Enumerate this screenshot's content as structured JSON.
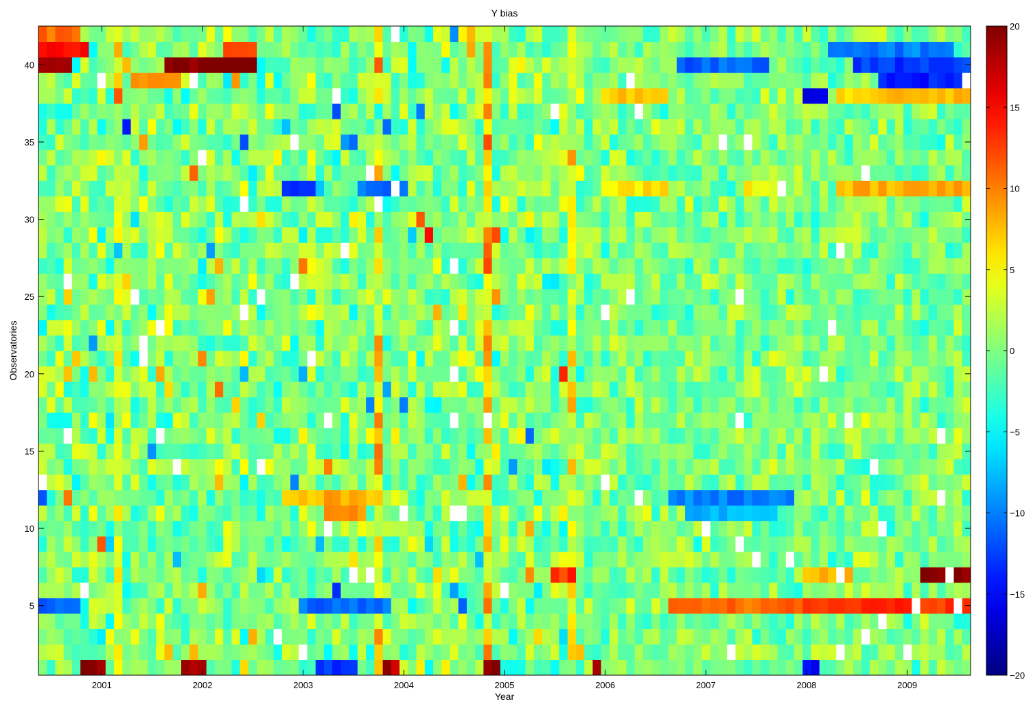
{
  "chart_data": {
    "type": "heatmap",
    "title": "Y bias",
    "xlabel": "Year",
    "ylabel": "Observatories",
    "x_ticks": [
      "2001",
      "2002",
      "2003",
      "2004",
      "2005",
      "2006",
      "2007",
      "2008",
      "2009"
    ],
    "x_tick_values": [
      2001,
      2002,
      2003,
      2004,
      2005,
      2006,
      2007,
      2008,
      2009
    ],
    "xlim": [
      2000.37,
      2009.63
    ],
    "y_ticks": [
      "5",
      "10",
      "15",
      "20",
      "25",
      "30",
      "35",
      "40"
    ],
    "y_tick_values": [
      5,
      10,
      15,
      20,
      25,
      30,
      35,
      40
    ],
    "ylim": [
      0.5,
      42.5
    ],
    "n_rows": 42,
    "n_cols": 111,
    "colorbar": {
      "min": -20,
      "max": 20,
      "ticks": [
        "20",
        "15",
        "10",
        "5",
        "0",
        "−5",
        "−10",
        "−15",
        "−20"
      ],
      "tick_values": [
        20,
        15,
        10,
        5,
        0,
        -5,
        -10,
        -15,
        -20
      ],
      "colormap": "jet"
    },
    "missing_color": "#ffffff",
    "features": [
      {
        "row": 40,
        "from": 2001.65,
        "to": 2002.55,
        "value": 20
      },
      {
        "row": 40,
        "from": 2000.37,
        "to": 2000.7,
        "value": 18
      },
      {
        "row": 41,
        "from": 2000.37,
        "to": 2000.9,
        "value": 14
      },
      {
        "row": 41,
        "from": 2002.2,
        "to": 2002.55,
        "value": 13
      },
      {
        "row": 42,
        "from": 2000.37,
        "to": 2000.75,
        "value": 11
      },
      {
        "row": 39,
        "from": 2001.3,
        "to": 2001.8,
        "value": 10
      },
      {
        "row": 40,
        "from": 2008.5,
        "to": 2009.63,
        "value": -13
      },
      {
        "row": 39,
        "from": 2008.7,
        "to": 2009.63,
        "value": -14
      },
      {
        "row": 41,
        "from": 2008.2,
        "to": 2009.5,
        "value": -10
      },
      {
        "row": 40,
        "from": 2006.7,
        "to": 2007.6,
        "value": -11
      },
      {
        "row": 38,
        "from": 2009.0,
        "to": 2009.63,
        "value": 8
      },
      {
        "row": 38,
        "from": 2006.0,
        "to": 2006.6,
        "value": 7
      },
      {
        "row": 38,
        "from": 2008.3,
        "to": 2009.0,
        "value": 7
      },
      {
        "row": 38,
        "from": 2007.95,
        "to": 2008.2,
        "value": -17
      },
      {
        "row": 32,
        "from": 2008.3,
        "to": 2009.63,
        "value": 8
      },
      {
        "row": 32,
        "from": 2006.0,
        "to": 2006.6,
        "value": 6
      },
      {
        "row": 32,
        "from": 2007.35,
        "to": 2007.7,
        "value": 5
      },
      {
        "row": 32,
        "from": 2002.75,
        "to": 2003.1,
        "value": -13
      },
      {
        "row": 32,
        "from": 2003.5,
        "to": 2004.0,
        "value": -11
      },
      {
        "row": 12,
        "from": 2006.65,
        "to": 2007.85,
        "value": -10
      },
      {
        "row": 11,
        "from": 2006.8,
        "to": 2007.7,
        "value": -8
      },
      {
        "row": 12,
        "from": 2002.8,
        "to": 2003.8,
        "value": 8
      },
      {
        "row": 11,
        "from": 2003.2,
        "to": 2003.6,
        "value": 9
      },
      {
        "row": 5,
        "from": 2006.6,
        "to": 2009.63,
        "value": 11
      },
      {
        "row": 5,
        "from": 2008.0,
        "to": 2009.63,
        "value": 13
      },
      {
        "row": 5,
        "from": 2000.37,
        "to": 2000.8,
        "value": -11
      },
      {
        "row": 5,
        "from": 2002.95,
        "to": 2003.9,
        "value": -11
      },
      {
        "row": 7,
        "from": 2009.1,
        "to": 2009.63,
        "value": 19
      },
      {
        "row": 7,
        "from": 2007.95,
        "to": 2008.5,
        "value": 8
      },
      {
        "row": 7,
        "from": 2005.45,
        "to": 2005.7,
        "value": 13
      },
      {
        "row": 1,
        "from": 2000.8,
        "to": 2001.0,
        "value": 19
      },
      {
        "row": 1,
        "from": 2001.8,
        "to": 2002.0,
        "value": 18
      },
      {
        "row": 1,
        "from": 2003.8,
        "to": 2003.95,
        "value": 18
      },
      {
        "row": 1,
        "from": 2004.8,
        "to": 2004.95,
        "value": 19
      },
      {
        "row": 1,
        "from": 2005.85,
        "to": 2006.0,
        "value": 19
      },
      {
        "row": 1,
        "from": 2007.95,
        "to": 2008.15,
        "value": -15
      },
      {
        "row": 1,
        "from": 2003.1,
        "to": 2003.5,
        "value": -13
      }
    ],
    "column_bands": [
      {
        "from": 2004.8,
        "to": 2004.9,
        "value": 7
      },
      {
        "from": 2003.72,
        "to": 2003.82,
        "value": 6
      },
      {
        "from": 2002.75,
        "to": 2002.83,
        "value": 5
      },
      {
        "from": 2001.15,
        "to": 2001.23,
        "value": 4
      },
      {
        "from": 2005.6,
        "to": 2005.68,
        "value": 4
      }
    ]
  }
}
